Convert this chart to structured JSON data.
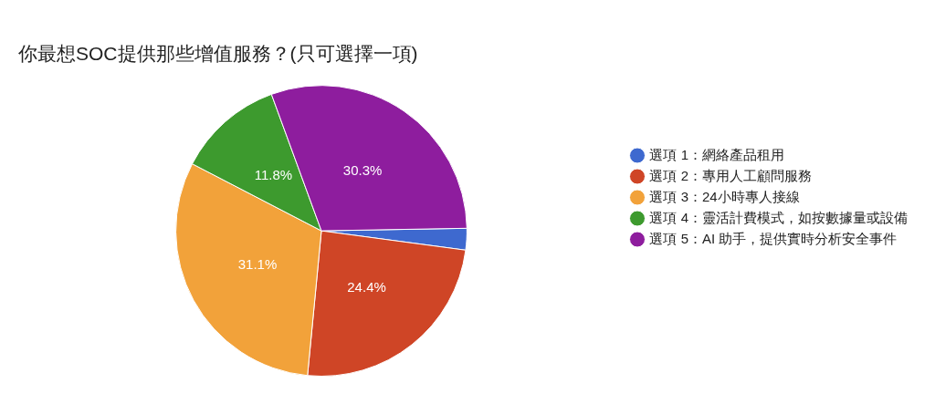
{
  "chart_data": {
    "type": "pie",
    "title": "你最想SOC提供那些增值服務？(只可選擇一項)",
    "categories": [
      "選項 1：網絡產品租用",
      "選項 2：專用人工顧問服務",
      "選項 3：24小時專人接線",
      "選項 4：靈活計費模式，如按數據量或設備",
      "選項 5：AI 助手，提供實時分析安全事件"
    ],
    "values": [
      2.4,
      24.4,
      31.1,
      11.8,
      30.3
    ],
    "value_labels": [
      null,
      "24.4%",
      "31.1%",
      "11.8%",
      "30.3%"
    ],
    "colors": [
      "#3e69cf",
      "#cf4526",
      "#f2a23a",
      "#3d9a2e",
      "#8e1d9e"
    ],
    "legend": "right"
  }
}
